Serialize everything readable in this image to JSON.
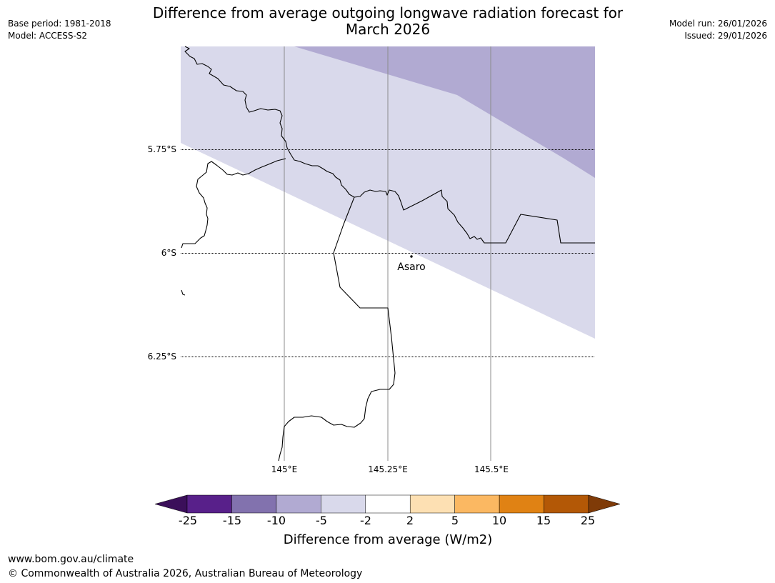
{
  "header": {
    "title_line1": "Difference from average outgoing longwave radiation forecast for",
    "title_line2": "March 2026",
    "base_period": "Base period: 1981-2018",
    "model": "Model: ACCESS-S2",
    "model_run": "Model run: 26/01/2026",
    "issued": "Issued: 29/01/2026"
  },
  "map": {
    "lat_labels": [
      "5.75°S",
      "6°S",
      "6.25°S"
    ],
    "lon_labels": [
      "145°E",
      "145.25°E",
      "145.5°E"
    ],
    "place": "Asaro"
  },
  "colorbar": {
    "ticks": [
      "-25",
      "-15",
      "-10",
      "-5",
      "-2",
      "2",
      "5",
      "10",
      "15",
      "25"
    ],
    "colors": [
      "#3b0f5a",
      "#58208a",
      "#8272ae",
      "#b1aad2",
      "#d9d9eb",
      "#ffffff",
      "#fde0b3",
      "#fbb862",
      "#e08214",
      "#b35806",
      "#7f3b08"
    ],
    "title": "Difference from average (W/m2)"
  },
  "footer": {
    "url": "www.bom.gov.au/climate",
    "copyright": "© Commonwealth of Australia 2026, Australian Bureau of Meteorology"
  }
}
